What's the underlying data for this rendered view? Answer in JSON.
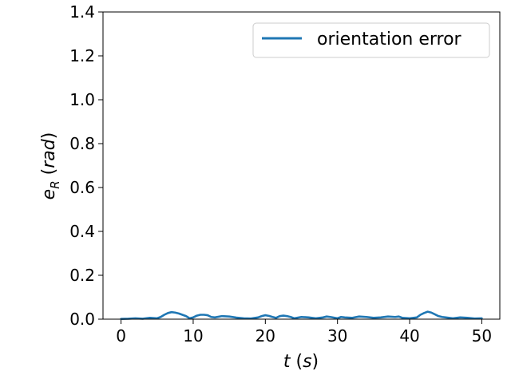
{
  "chart_data": {
    "type": "line",
    "xlabel": "t (s)",
    "ylabel": "e_R (rad)",
    "xlim": [
      -2.5,
      52.5
    ],
    "ylim": [
      0,
      1.4
    ],
    "xticks": [
      0,
      10,
      20,
      30,
      40,
      50
    ],
    "yticks": [
      0.0,
      0.2,
      0.4,
      0.6,
      0.8,
      1.0,
      1.2,
      1.4
    ],
    "grid": false,
    "legend_position": "top-right",
    "series": [
      {
        "name": "orientation error",
        "color": "#1f77b4",
        "x": [
          0,
          1,
          2,
          3,
          4,
          5,
          5.5,
          6,
          6.5,
          7,
          7.5,
          8,
          8.5,
          9,
          9.5,
          10,
          10.5,
          11,
          11.5,
          12,
          12.5,
          13,
          14,
          15,
          16,
          17,
          18,
          19,
          19.5,
          20,
          20.5,
          21,
          21.5,
          22,
          22.5,
          23,
          23.5,
          24,
          25,
          26,
          27,
          28,
          28.5,
          29,
          30,
          30.5,
          31,
          32,
          33,
          34,
          35,
          36,
          37,
          38,
          38.5,
          39,
          40,
          41,
          41.5,
          42,
          42.5,
          43,
          43.5,
          44,
          44.5,
          45,
          46,
          47,
          48,
          49,
          50
        ],
        "y": [
          0.001,
          0.002,
          0.004,
          0.002,
          0.006,
          0.004,
          0.01,
          0.02,
          0.028,
          0.032,
          0.03,
          0.026,
          0.02,
          0.014,
          0.004,
          0.008,
          0.016,
          0.02,
          0.02,
          0.018,
          0.01,
          0.008,
          0.014,
          0.012,
          0.007,
          0.004,
          0.003,
          0.008,
          0.014,
          0.018,
          0.015,
          0.01,
          0.006,
          0.014,
          0.016,
          0.014,
          0.01,
          0.004,
          0.01,
          0.008,
          0.004,
          0.008,
          0.012,
          0.01,
          0.004,
          0.01,
          0.008,
          0.006,
          0.012,
          0.01,
          0.006,
          0.008,
          0.012,
          0.01,
          0.012,
          0.006,
          0.004,
          0.008,
          0.02,
          0.028,
          0.034,
          0.03,
          0.022,
          0.014,
          0.01,
          0.008,
          0.004,
          0.008,
          0.006,
          0.003,
          0.004
        ]
      }
    ]
  }
}
